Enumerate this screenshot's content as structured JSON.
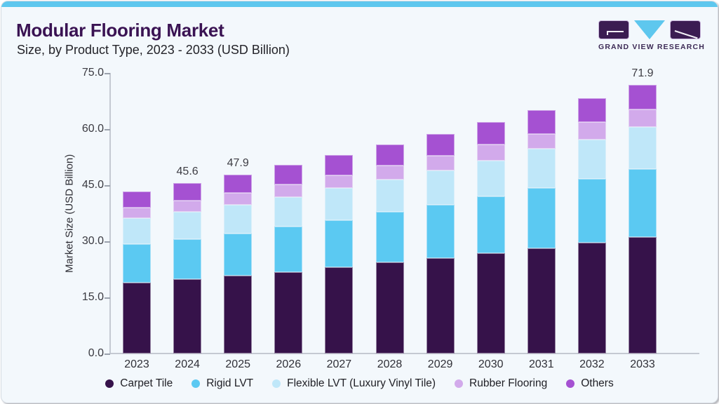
{
  "header": {
    "title": "Modular Flooring Market",
    "subtitle": "Size, by Product Type, 2023 - 2033 (USD Billion)",
    "logo_text": "GRAND VIEW RESEARCH"
  },
  "colors": {
    "accent_bar": "#5ec7ee",
    "title_text": "#3a1353",
    "logo_purple": "#3b1c52",
    "card_background": "#f3f8fc",
    "axis_line": "#c4c9d2"
  },
  "chart_data": {
    "type": "bar",
    "stacked": true,
    "title": "Modular Flooring Market Size, by Product Type, 2023 - 2033 (USD Billion)",
    "xlabel": "",
    "ylabel": "Market Size (USD Billion)",
    "ylim": [
      0,
      75
    ],
    "yticks": [
      0.0,
      15.0,
      30.0,
      45.0,
      60.0,
      75.0
    ],
    "grid": false,
    "legend_position": "bottom",
    "categories": [
      "2023",
      "2024",
      "2025",
      "2026",
      "2027",
      "2028",
      "2029",
      "2030",
      "2031",
      "2032",
      "2033"
    ],
    "series": [
      {
        "name": "Carpet Tile",
        "color": "#36124a",
        "values": [
          19.0,
          19.9,
          20.8,
          21.8,
          23.1,
          24.4,
          25.5,
          26.8,
          28.2,
          29.7,
          31.2
        ]
      },
      {
        "name": "Rigid LVT",
        "color": "#5bc9f2",
        "values": [
          10.2,
          10.7,
          11.3,
          12.1,
          12.6,
          13.4,
          14.2,
          15.2,
          16.1,
          16.9,
          18.1
        ]
      },
      {
        "name": "Flexible LVT (Luxury Vinyl Tile)",
        "color": "#bfe7f9",
        "values": [
          6.9,
          7.3,
          7.7,
          7.9,
          8.6,
          8.8,
          9.2,
          9.6,
          10.4,
          10.6,
          11.3
        ]
      },
      {
        "name": "Rubber Flooring",
        "color": "#d2aaeb",
        "values": [
          2.9,
          2.9,
          3.2,
          3.3,
          3.4,
          3.6,
          3.9,
          4.2,
          4.0,
          4.7,
          4.6
        ]
      },
      {
        "name": "Others",
        "color": "#a551d2",
        "values": [
          4.4,
          4.8,
          4.9,
          5.3,
          5.3,
          5.6,
          5.9,
          6.0,
          6.3,
          6.4,
          6.7
        ]
      }
    ],
    "totals": [
      43.4,
      45.6,
      47.9,
      50.4,
      53.0,
      55.8,
      58.7,
      61.8,
      65.0,
      68.3,
      71.9
    ],
    "bar_value_labels": {
      "2024": "45.6",
      "2025": "47.9",
      "2033": "71.9"
    }
  }
}
